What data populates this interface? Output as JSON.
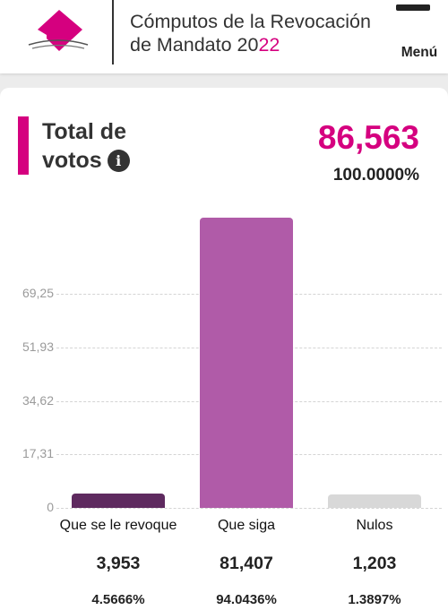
{
  "header": {
    "title_prefix": "Cómputos de la Revocación de Mandato 20",
    "title_accent": "22",
    "menu_label": "Menú",
    "logo_icon": "ine-ballot-logo-icon",
    "menu_icon": "hamburger-menu-icon",
    "accent_color": "#d5007f"
  },
  "summary": {
    "label": "Total de votos",
    "info_icon": "info-icon",
    "total_votes": "86,563",
    "total_percent": "100.0000%"
  },
  "chart_data": {
    "type": "bar",
    "categories": [
      "Que se le revoque",
      "Que siga",
      "Nulos"
    ],
    "values": [
      4.5666,
      94.0436,
      1.3897
    ],
    "value_labels": [
      "3,953",
      "81,407",
      "1,203"
    ],
    "percent_labels": [
      "4.5666%",
      "94.0436%",
      "1.3897%"
    ],
    "colors": [
      "#5e2a5f",
      "#b05ba8",
      "#d8d8d8"
    ],
    "y_ticks": [
      0,
      17.31,
      34.62,
      51.93,
      69.25
    ],
    "y_tick_labels": [
      "0",
      "17,31",
      "34,62",
      "51,93",
      "69,25"
    ],
    "ylim": [
      0,
      94.0436
    ],
    "grid": true,
    "legend": "none"
  }
}
